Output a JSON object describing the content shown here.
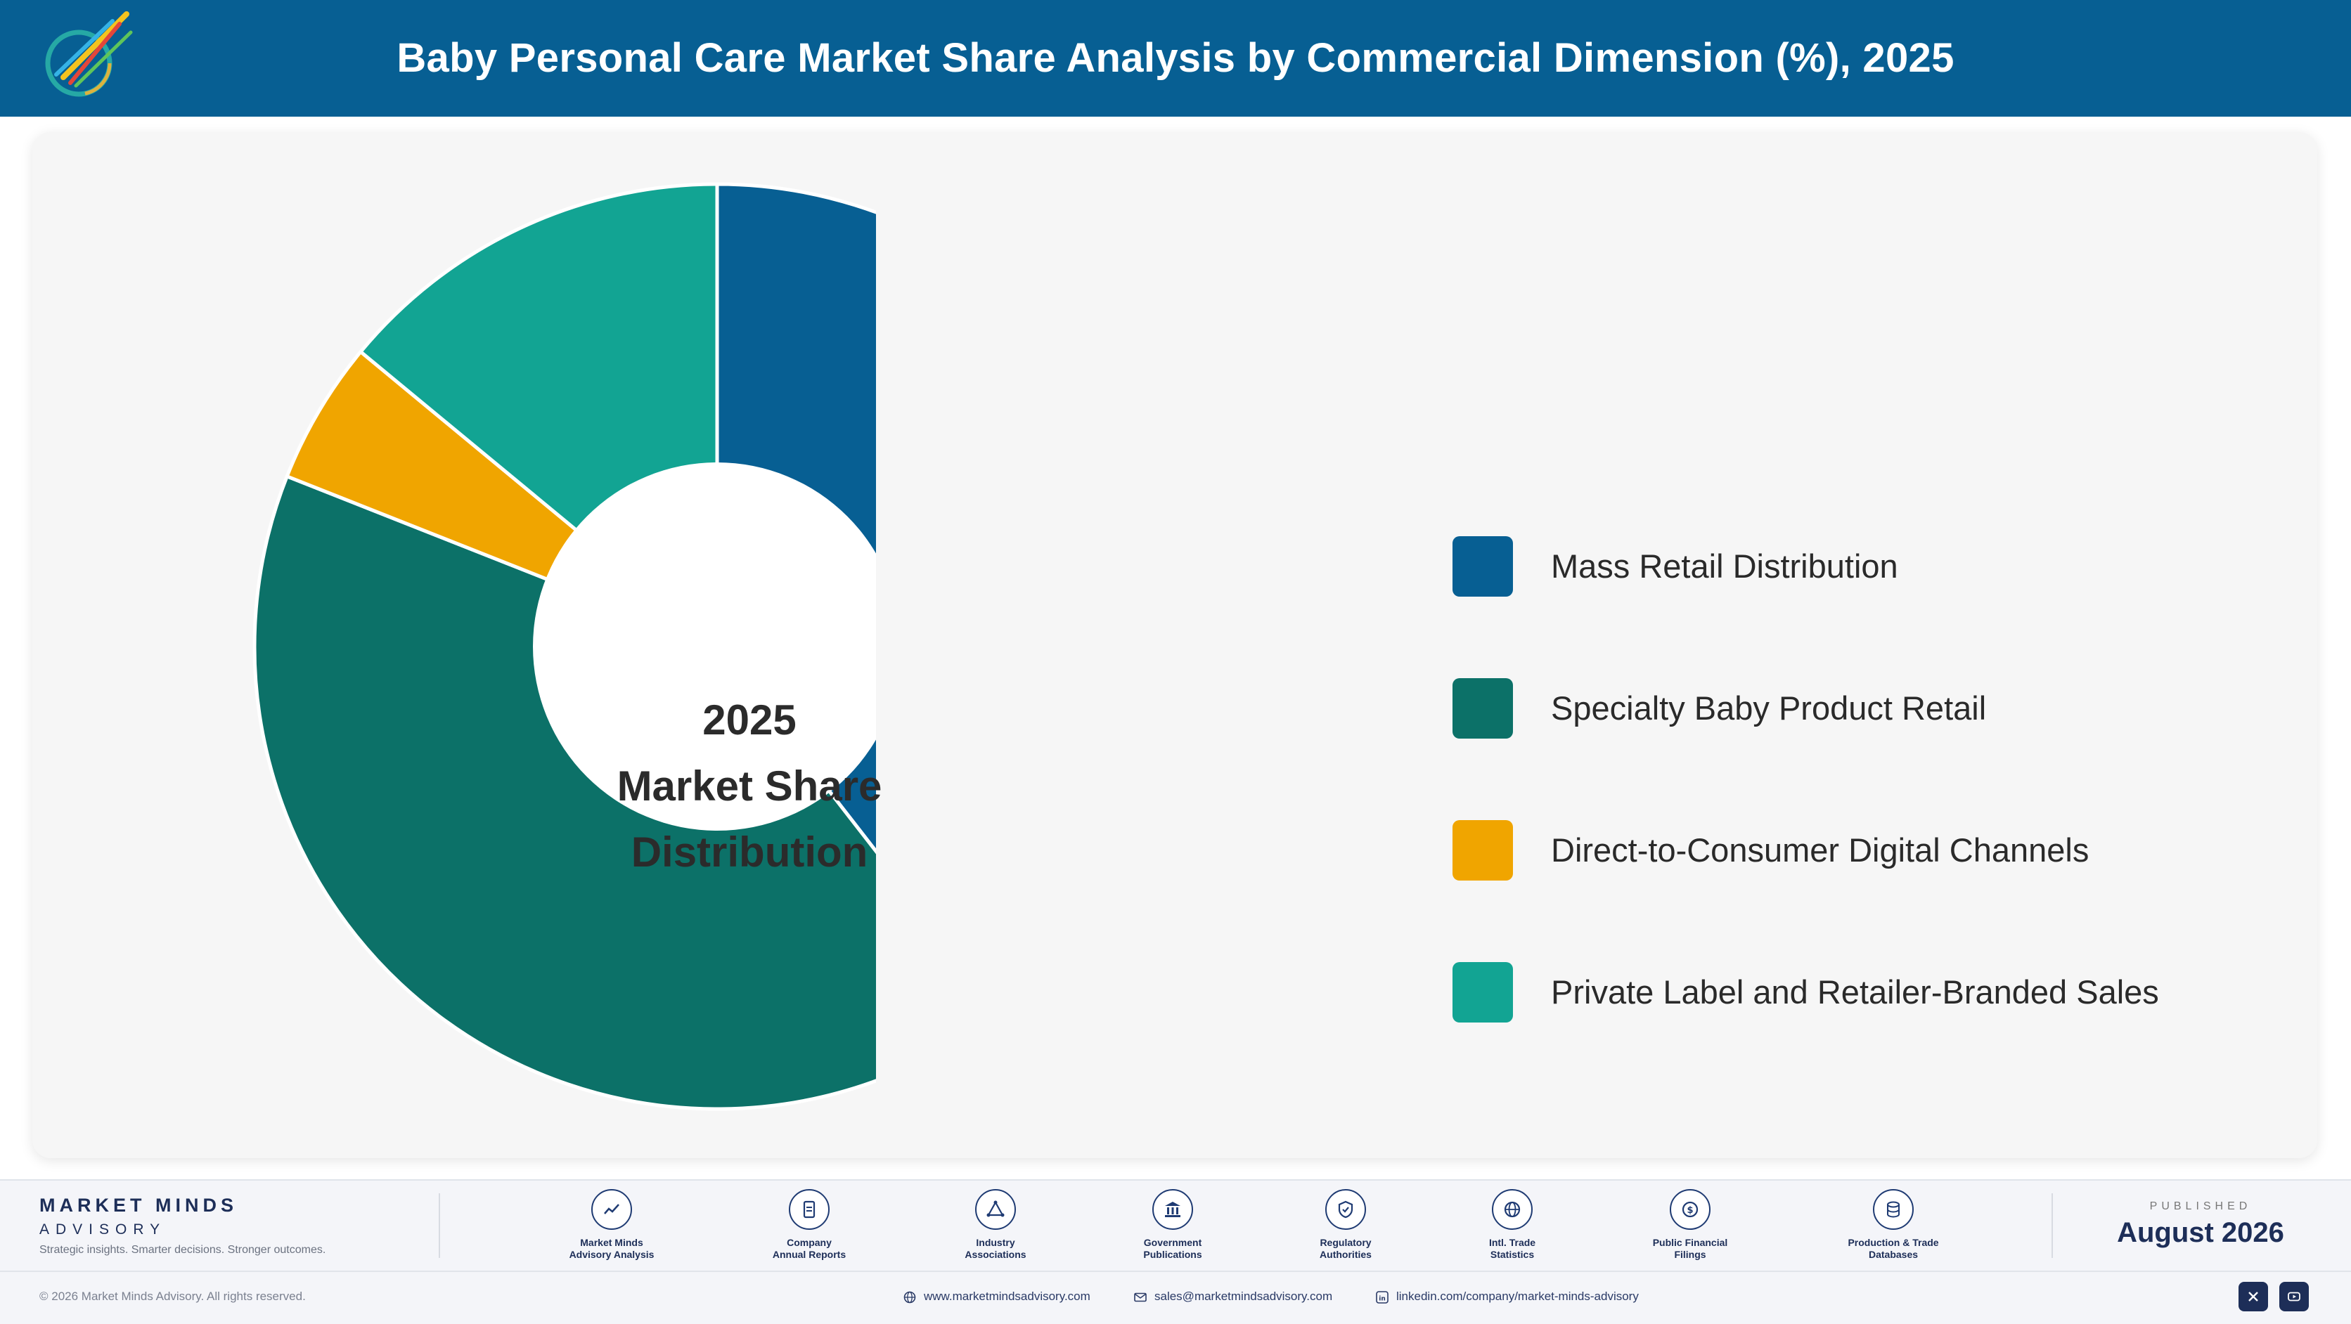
{
  "header": {
    "title": "Baby Personal Care Market Share Analysis by Commercial Dimension (%), 2025",
    "brand_color": "#075f93"
  },
  "chart_data": {
    "type": "pie",
    "variant": "donut",
    "title": "Baby Personal Care Market Share Analysis by Commercial Dimension (%), 2025",
    "center_label": [
      "2025",
      "Market Share",
      "Distribution"
    ],
    "categories": [
      "Mass Retail Distribution",
      "Specialty Baby Product Retail",
      "Direct-to-Consumer Digital Channels",
      "Private Label and Retailer-Branded Sales"
    ],
    "values": [
      39.5,
      41.5,
      5.0,
      14.0
    ],
    "colors": [
      "#075f93",
      "#0c7168",
      "#f0a500",
      "#12a493"
    ],
    "start_angle": "12 o'clock, clockwise",
    "legend_position": "right"
  },
  "footer": {
    "brand_name": "MARKET MINDS",
    "brand_sub": "ADVISORY",
    "tagline": "Strategic insights. Smarter decisions. Stronger outcomes.",
    "sources": [
      {
        "line1": "Market Minds",
        "line2": "Advisory Analysis",
        "icon": "trend-line-icon"
      },
      {
        "line1": "Company",
        "line2": "Annual Reports",
        "icon": "document-icon"
      },
      {
        "line1": "Industry",
        "line2": "Associations",
        "icon": "network-triangle-icon"
      },
      {
        "line1": "Government",
        "line2": "Publications",
        "icon": "building-columns-icon"
      },
      {
        "line1": "Regulatory",
        "line2": "Authorities",
        "icon": "shield-check-icon"
      },
      {
        "line1": "Intl. Trade",
        "line2": "Statistics",
        "icon": "globe-icon"
      },
      {
        "line1": "Public Financial",
        "line2": "Filings",
        "icon": "dollar-coin-icon"
      },
      {
        "line1": "Production & Trade",
        "line2": "Databases",
        "icon": "database-icon"
      }
    ],
    "published_label": "PUBLISHED",
    "published_date": "August 2026",
    "copyright": "© 2026 Market Minds Advisory. All rights reserved.",
    "website": "www.marketmindsadvisory.com",
    "email": "sales@marketmindsadvisory.com",
    "linkedin": "linkedin.com/company/market-minds-advisory",
    "social_icons": [
      "x-icon",
      "youtube-icon"
    ]
  }
}
